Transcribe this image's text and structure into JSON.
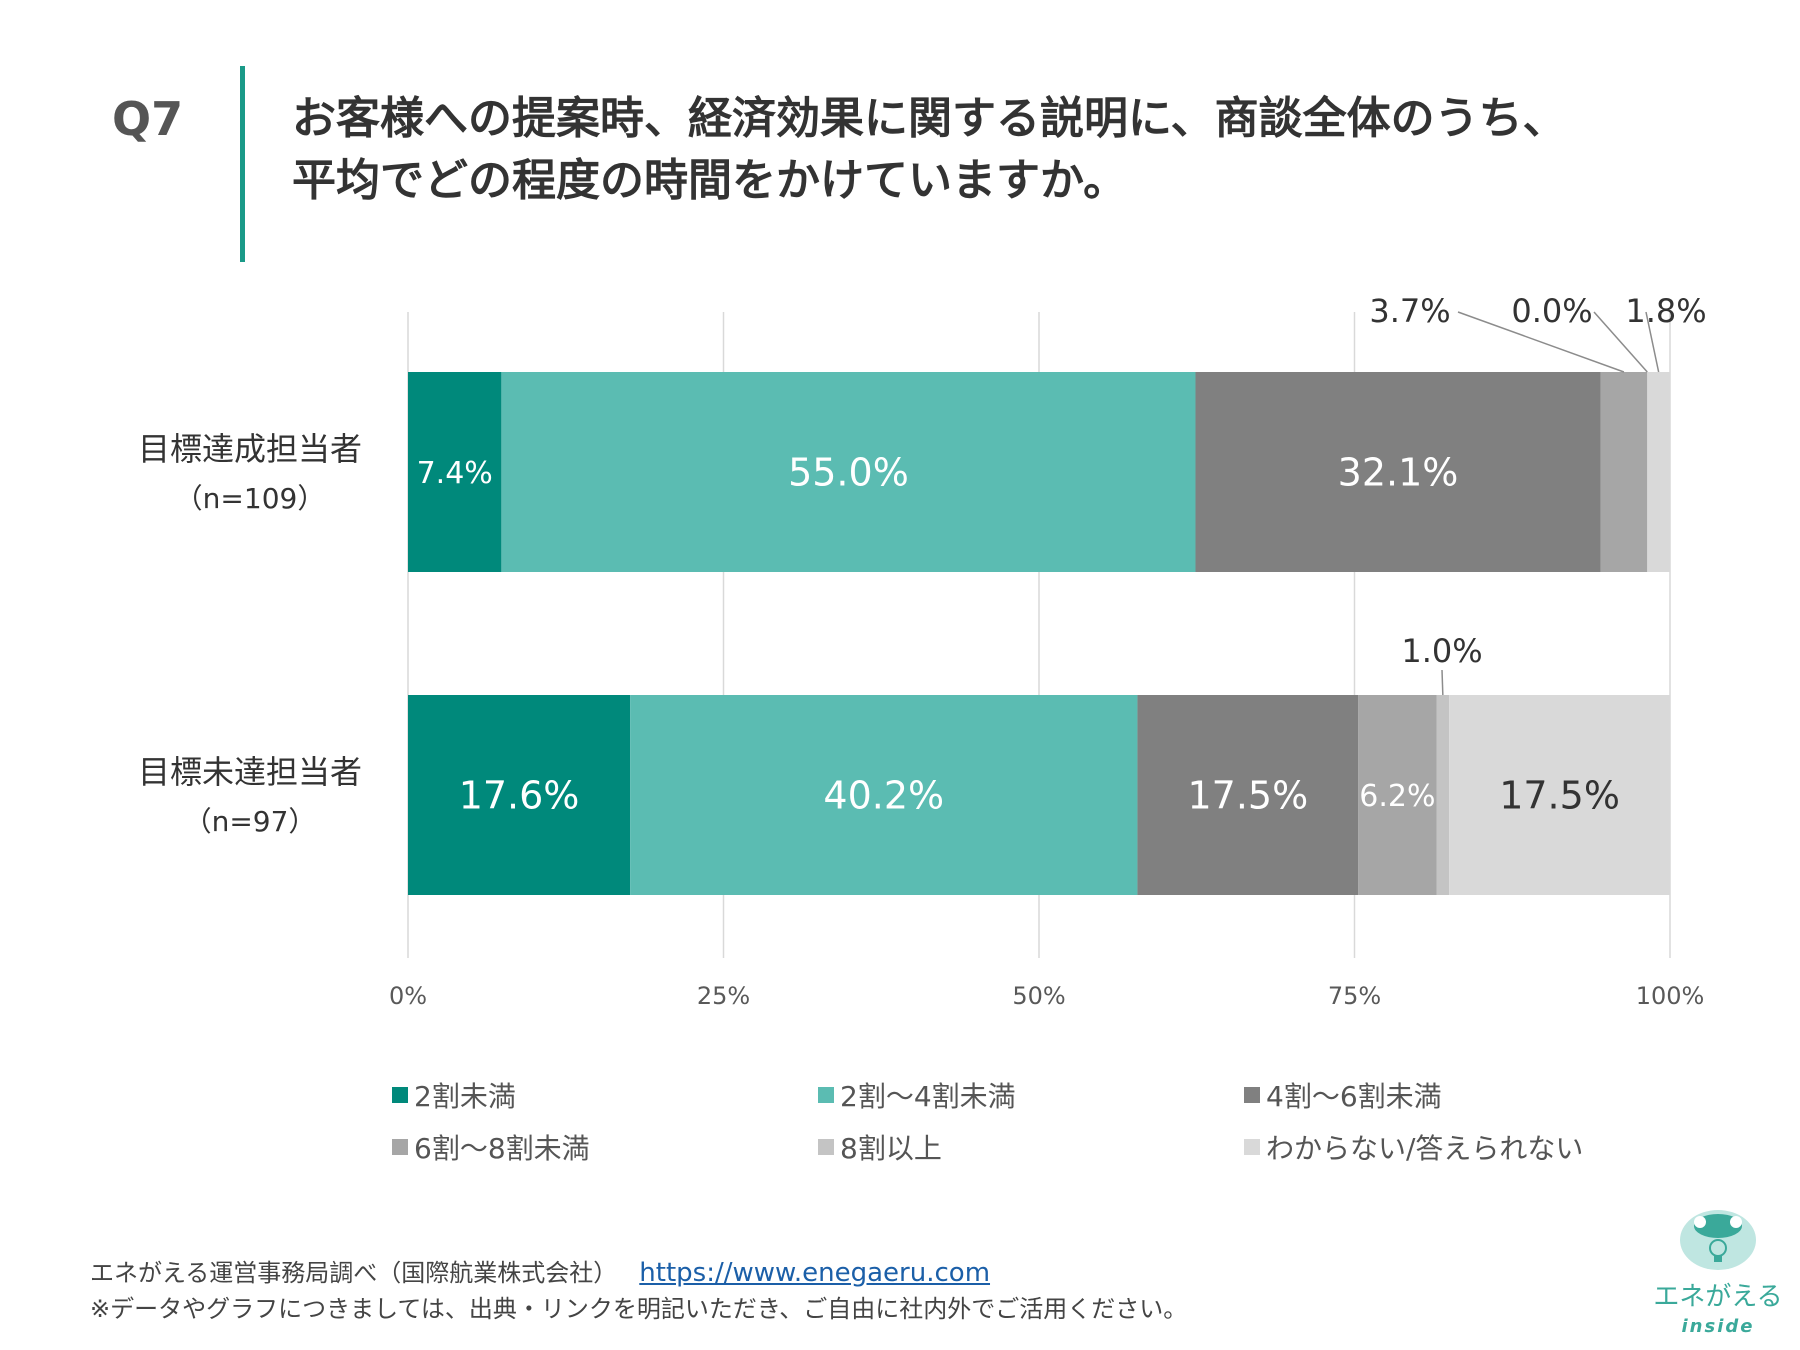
{
  "question": {
    "number": "Q7",
    "title_lines": [
      "お客様への提案時、経済効果に関する説明に、商談全体のうち、",
      "平均でどの程度の時間をかけていますか。"
    ]
  },
  "chart_data": {
    "type": "bar",
    "orientation": "horizontal",
    "stacked": "100%",
    "categories": [
      {
        "name": "目標達成担当者",
        "n": "（n=109）"
      },
      {
        "name": "目標未達担当者",
        "n": "（n=97）"
      }
    ],
    "series": [
      {
        "name": "2割未満",
        "color": "#00897b",
        "values": [
          7.4,
          17.6
        ],
        "labels": [
          "7.4%",
          "17.6%"
        ]
      },
      {
        "name": "2割～4割未満",
        "color": "#5bbcb2",
        "values": [
          55.0,
          40.2
        ],
        "labels": [
          "55.0%",
          "40.2%"
        ]
      },
      {
        "name": "4割～6割未満",
        "color": "#808080",
        "values": [
          32.1,
          17.5
        ],
        "labels": [
          "32.1%",
          "17.5%"
        ]
      },
      {
        "name": "6割～8割未満",
        "color": "#a6a6a6",
        "values": [
          3.7,
          6.2
        ],
        "labels": [
          "3.7%",
          "6.2%"
        ]
      },
      {
        "name": "8割以上",
        "color": "#c4c4c4",
        "values": [
          0.0,
          1.0
        ],
        "labels": [
          "0.0%",
          "1.0%"
        ]
      },
      {
        "name": "わからない/答えられない",
        "color": "#d9d9d9",
        "values": [
          1.8,
          17.5
        ],
        "labels": [
          "1.8%",
          "17.5%"
        ]
      }
    ],
    "x_ticks": [
      "0%",
      "25%",
      "50%",
      "75%",
      "100%"
    ],
    "xlim": [
      0,
      100
    ],
    "grid": true,
    "legend_position": "bottom"
  },
  "footer": {
    "source": "エネがえる運営事務局調べ（国際航業株式会社）",
    "url": "https://www.enegaeru.com",
    "note": "※データやグラフにつきましては、出典・リンクを明記いただき、ご自由に社内外でご活用ください。"
  },
  "logo": {
    "name": "エネがえる",
    "sub": "inside"
  }
}
